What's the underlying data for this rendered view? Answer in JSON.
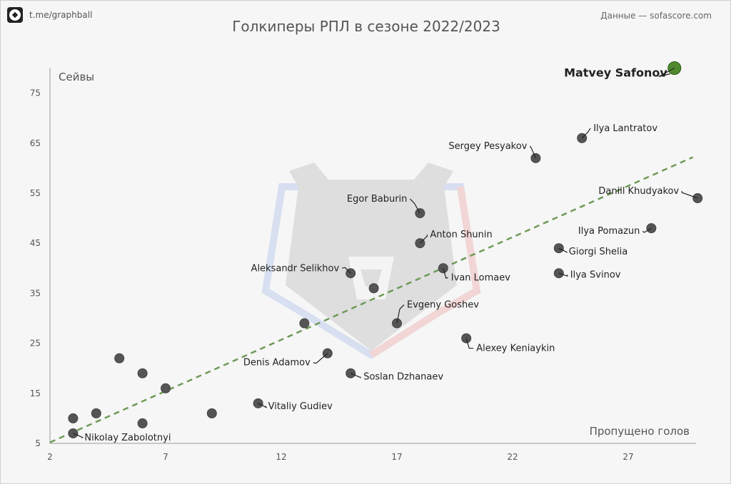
{
  "header": {
    "handle": "t.me/graphball",
    "source": "Данные — sofascore.com",
    "title": "Голкиперы РПЛ в сезоне 2022/2023"
  },
  "colors": {
    "point": "#555555",
    "highlight": "#4f8a2e",
    "trend": "#6f9a58",
    "background": "#f6f6f6"
  },
  "chart_data": {
    "type": "scatter",
    "title": "Голкиперы РПЛ в сезоне 2022/2023",
    "xlabel": "Пропущено голов",
    "ylabel": "Сейвы",
    "xlim": [
      2,
      30
    ],
    "ylim": [
      5,
      80
    ],
    "xticks": [
      2,
      7,
      12,
      17,
      22,
      27
    ],
    "yticks": [
      5,
      15,
      25,
      35,
      45,
      55,
      65,
      75
    ],
    "grid": false,
    "trendline": {
      "x": [
        2,
        29.8
      ],
      "y": [
        5.2,
        62.2
      ]
    },
    "points": [
      {
        "name": "Matvey Safonov",
        "x": 29,
        "y": 80,
        "highlight": true
      },
      {
        "name": "Ilya Lantratov",
        "x": 25,
        "y": 66
      },
      {
        "name": "Sergey Pesyakov",
        "x": 23,
        "y": 62
      },
      {
        "name": "Daniil Khudyakov",
        "x": 30,
        "y": 54
      },
      {
        "name": "Ilya Pomazun",
        "x": 28,
        "y": 48
      },
      {
        "name": "Giorgi Shelia",
        "x": 24,
        "y": 44
      },
      {
        "name": "Ilya Svinov",
        "x": 24,
        "y": 39
      },
      {
        "name": "Egor Baburin",
        "x": 18,
        "y": 51
      },
      {
        "name": "Anton Shunin",
        "x": 18,
        "y": 45
      },
      {
        "name": "Ivan Lomaev",
        "x": 19,
        "y": 40
      },
      {
        "name": "Aleksandr Selikhov",
        "x": 15,
        "y": 39
      },
      {
        "name": "Evgeny Goshev",
        "x": 17,
        "y": 29
      },
      {
        "name": "Alexey Keniaykin",
        "x": 20,
        "y": 26
      },
      {
        "name": "Denis Adamov",
        "x": 14,
        "y": 23
      },
      {
        "name": "Soslan Dzhanaev",
        "x": 15,
        "y": 19
      },
      {
        "name": "Vitaliy Gudiev",
        "x": 11,
        "y": 13
      },
      {
        "name": "Nikolay Zabolotnyi",
        "x": 3,
        "y": 7
      },
      {
        "name": "",
        "x": 16,
        "y": 36
      },
      {
        "name": "",
        "x": 13,
        "y": 29
      },
      {
        "name": "",
        "x": 5,
        "y": 22
      },
      {
        "name": "",
        "x": 6,
        "y": 19
      },
      {
        "name": "",
        "x": 7,
        "y": 16
      },
      {
        "name": "",
        "x": 4,
        "y": 11
      },
      {
        "name": "",
        "x": 3,
        "y": 10
      },
      {
        "name": "",
        "x": 6,
        "y": 9
      },
      {
        "name": "",
        "x": 9,
        "y": 11
      }
    ]
  }
}
